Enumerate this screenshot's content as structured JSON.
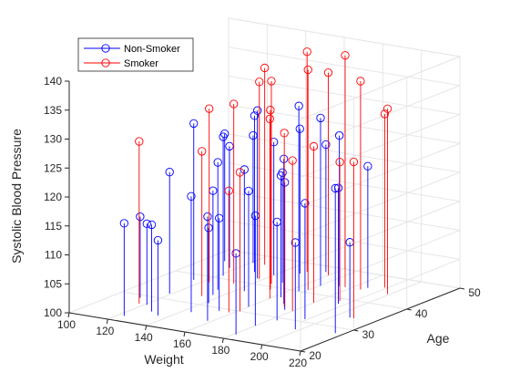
{
  "chart_data": {
    "type": "scatter",
    "plot_style": "3d-stem",
    "xlabel": "Weight",
    "ylabel": "Age",
    "zlabel": "Systolic Blood Pressure",
    "xlim": [
      100,
      220
    ],
    "ylim": [
      20,
      50
    ],
    "zlim": [
      100,
      140
    ],
    "x_ticks": [
      "100",
      "120",
      "140",
      "160",
      "180",
      "200",
      "220"
    ],
    "y_ticks": [
      "20",
      "30",
      "40",
      "50"
    ],
    "z_ticks": [
      "100",
      "105",
      "110",
      "115",
      "120",
      "125",
      "130",
      "135",
      "140"
    ],
    "grid": true,
    "legend_position": "top-left",
    "colors": {
      "non_smoker": "#0000ff",
      "smoker": "#ff0000",
      "axis": "#262626",
      "grid": "#e6e6e6"
    },
    "series": [
      {
        "name": "Non-Smoker",
        "color": "#0000ff",
        "marker": "circle",
        "points": [
          [
            176,
            33,
            122
          ],
          [
            115,
            38,
            127
          ],
          [
            122,
            41,
            124
          ],
          [
            133,
            36,
            122
          ],
          [
            140,
            44,
            123
          ],
          [
            148,
            46,
            125
          ],
          [
            150,
            42,
            119
          ],
          [
            163,
            37,
            121
          ],
          [
            170,
            35,
            125
          ],
          [
            183,
            29,
            117
          ],
          [
            192,
            31,
            120
          ],
          [
            207,
            34,
            113
          ],
          [
            216,
            28,
            125
          ],
          [
            158,
            25,
            118
          ],
          [
            144,
            27,
            120
          ],
          [
            129,
            25,
            115
          ],
          [
            121,
            27,
            114
          ],
          [
            112,
            29,
            114
          ],
          [
            130,
            44,
            127
          ],
          [
            164,
            40,
            132
          ],
          [
            174,
            44,
            126
          ],
          [
            156,
            48,
            122
          ],
          [
            121,
            47,
            122
          ],
          [
            109,
            46,
            122
          ],
          [
            136,
            34,
            118
          ],
          [
            142,
            31,
            113
          ],
          [
            160,
            32,
            120
          ],
          [
            180,
            26,
            119
          ],
          [
            190,
            38,
            120
          ],
          [
            198,
            27,
            115
          ],
          [
            186,
            45,
            121
          ],
          [
            137,
            42,
            129
          ],
          [
            117,
            44,
            121
          ],
          [
            119,
            32,
            121
          ],
          [
            123,
            22,
            116
          ],
          [
            135,
            24,
            113
          ],
          [
            181,
            22,
            114
          ],
          [
            144,
            37,
            121
          ],
          [
            153,
            29,
            116
          ],
          [
            167,
            43,
            129
          ]
        ]
      },
      {
        "name": "Smoker",
        "color": "#ff0000",
        "marker": "circle",
        "points": [
          [
            192,
            46,
            130
          ],
          [
            188,
            39,
            124
          ],
          [
            180,
            37,
            127
          ],
          [
            173,
            34,
            130
          ],
          [
            185,
            44,
            136
          ],
          [
            166,
            41,
            138
          ],
          [
            152,
            39,
            131
          ],
          [
            160,
            36,
            131
          ],
          [
            147,
            41,
            135
          ],
          [
            138,
            42,
            134
          ],
          [
            149,
            47,
            138
          ],
          [
            133,
            33,
            125
          ],
          [
            123,
            38,
            130
          ],
          [
            177,
            44,
            140
          ],
          [
            117,
            27,
            128
          ],
          [
            199,
            44,
            132
          ],
          [
            209,
            34,
            127
          ],
          [
            180,
            33,
            126
          ],
          [
            160,
            47,
            135
          ],
          [
            158,
            29,
            121
          ],
          [
            133,
            39,
            131
          ],
          [
            127,
            47,
            134
          ],
          [
            161,
            30,
            124
          ]
        ]
      }
    ]
  },
  "legend": {
    "items": [
      "Non-Smoker",
      "Smoker"
    ]
  }
}
